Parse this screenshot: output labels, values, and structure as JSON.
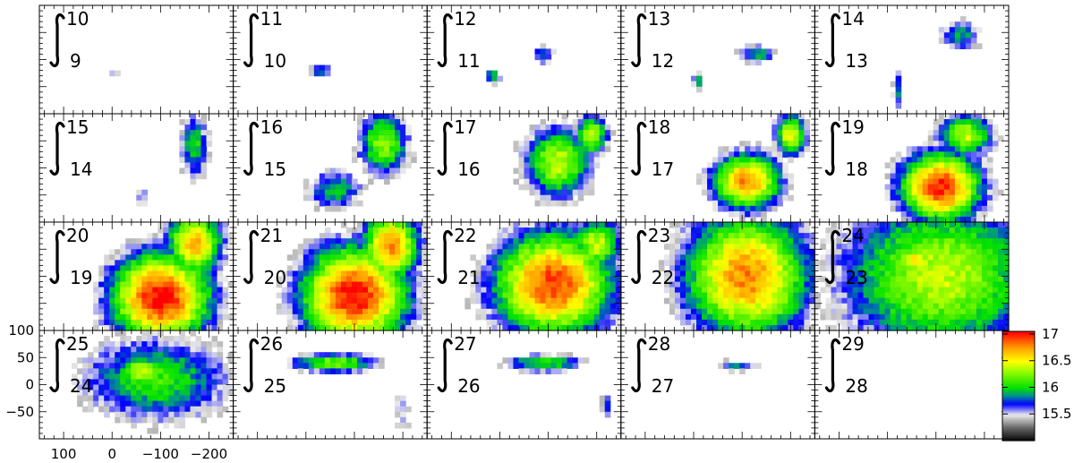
{
  "chart_data": {
    "type": "heatmap",
    "grid": {
      "rows": 4,
      "cols": 5
    },
    "panels": [
      {
        "upper": "10",
        "lower": "9",
        "blobs": [
          {
            "cx": -5,
            "cy": -25,
            "sx": 8,
            "sy": 8,
            "a": 15.7
          }
        ]
      },
      {
        "upper": "11",
        "lower": "10",
        "blobs": [
          {
            "cx": -30,
            "cy": -20,
            "sx": 20,
            "sy": 8,
            "a": 15.9
          },
          {
            "cx": -120,
            "cy": -20,
            "sx": 10,
            "sy": 5,
            "a": 15.45
          }
        ]
      },
      {
        "upper": "12",
        "lower": "11",
        "blobs": [
          {
            "cx": -90,
            "cy": 10,
            "sx": 18,
            "sy": 14,
            "a": 15.9
          },
          {
            "cx": 15,
            "cy": -30,
            "sx": 14,
            "sy": 12,
            "a": 15.95
          }
        ]
      },
      {
        "upper": "13",
        "lower": "12",
        "blobs": [
          {
            "cx": -130,
            "cy": 10,
            "sx": 30,
            "sy": 14,
            "a": 15.95
          },
          {
            "cx": -10,
            "cy": -40,
            "sx": 10,
            "sy": 14,
            "a": 15.9
          }
        ]
      },
      {
        "upper": "14",
        "lower": "13",
        "blobs": [
          {
            "cx": -150,
            "cy": 45,
            "sx": 35,
            "sy": 22,
            "a": 15.9
          },
          {
            "cx": -20,
            "cy": -55,
            "sx": 8,
            "sy": 30,
            "a": 15.85
          }
        ]
      },
      {
        "upper": "15",
        "lower": "14",
        "blobs": [
          {
            "cx": -170,
            "cy": 40,
            "sx": 22,
            "sy": 45,
            "a": 16.05
          },
          {
            "cx": -60,
            "cy": -50,
            "sx": 16,
            "sy": 18,
            "a": 15.6
          }
        ]
      },
      {
        "upper": "16",
        "lower": "15",
        "blobs": [
          {
            "cx": -160,
            "cy": 45,
            "sx": 40,
            "sy": 45,
            "a": 16.3
          },
          {
            "cx": -60,
            "cy": -40,
            "sx": 45,
            "sy": 28,
            "a": 16.0
          }
        ]
      },
      {
        "upper": "17",
        "lower": "16",
        "blobs": [
          {
            "cx": -120,
            "cy": 10,
            "sx": 55,
            "sy": 50,
            "a": 16.4
          },
          {
            "cx": -190,
            "cy": 60,
            "sx": 25,
            "sy": 30,
            "a": 16.4
          }
        ]
      },
      {
        "upper": "18",
        "lower": "17",
        "blobs": [
          {
            "cx": -110,
            "cy": -25,
            "sx": 55,
            "sy": 40,
            "a": 16.8
          },
          {
            "cx": -200,
            "cy": 60,
            "sx": 25,
            "sy": 30,
            "a": 16.5
          }
        ]
      },
      {
        "upper": "19",
        "lower": "18",
        "blobs": [
          {
            "cx": -110,
            "cy": -35,
            "sx": 65,
            "sy": 50,
            "a": 17.0
          },
          {
            "cx": -160,
            "cy": 60,
            "sx": 45,
            "sy": 30,
            "a": 16.4
          }
        ]
      },
      {
        "upper": "20",
        "lower": "19",
        "blobs": [
          {
            "cx": -100,
            "cy": -40,
            "sx": 80,
            "sy": 65,
            "a": 17.05
          },
          {
            "cx": -170,
            "cy": 60,
            "sx": 45,
            "sy": 45,
            "a": 16.7
          }
        ]
      },
      {
        "upper": "21",
        "lower": "20",
        "blobs": [
          {
            "cx": -100,
            "cy": -35,
            "sx": 85,
            "sy": 70,
            "a": 17.05
          },
          {
            "cx": -175,
            "cy": 55,
            "sx": 45,
            "sy": 50,
            "a": 16.8
          }
        ]
      },
      {
        "upper": "22",
        "lower": "21",
        "blobs": [
          {
            "cx": -110,
            "cy": -15,
            "sx": 95,
            "sy": 75,
            "a": 16.95
          },
          {
            "cx": -200,
            "cy": 60,
            "sx": 40,
            "sy": 40,
            "a": 16.4
          }
        ]
      },
      {
        "upper": "23",
        "lower": "22",
        "blobs": [
          {
            "cx": -110,
            "cy": 0,
            "sx": 100,
            "sy": 90,
            "a": 16.8
          },
          {
            "cx": -170,
            "cy": -50,
            "sx": 60,
            "sy": 30,
            "a": 16.3
          }
        ]
      },
      {
        "upper": "24",
        "lower": "23",
        "blobs": [
          {
            "cx": -110,
            "cy": 0,
            "sx": 160,
            "sy": 110,
            "a": 16.4
          },
          {
            "cx": -60,
            "cy": 30,
            "sx": 40,
            "sy": 22,
            "a": 16.55
          }
        ]
      },
      {
        "upper": "25",
        "lower": "24",
        "blobs": [
          {
            "cx": -90,
            "cy": 10,
            "sx": 120,
            "sy": 60,
            "a": 16.1
          },
          {
            "cx": -60,
            "cy": 25,
            "sx": 45,
            "sy": 20,
            "a": 16.45
          }
        ]
      },
      {
        "upper": "26",
        "lower": "25",
        "blobs": [
          {
            "cx": -60,
            "cy": 40,
            "sx": 70,
            "sy": 14,
            "a": 16.25
          },
          {
            "cx": -200,
            "cy": -50,
            "sx": 20,
            "sy": 40,
            "a": 15.5
          }
        ]
      },
      {
        "upper": "27",
        "lower": "26",
        "blobs": [
          {
            "cx": -90,
            "cy": 40,
            "sx": 60,
            "sy": 12,
            "a": 16.15
          },
          {
            "cx": -220,
            "cy": -40,
            "sx": 8,
            "sy": 20,
            "a": 15.85
          }
        ]
      },
      {
        "upper": "28",
        "lower": "27",
        "blobs": [
          {
            "cx": -90,
            "cy": 35,
            "sx": 40,
            "sy": 8,
            "a": 15.8
          }
        ]
      },
      {
        "upper": "29",
        "lower": "28",
        "blobs": [
          {
            "cx": -100,
            "cy": 40,
            "sx": 25,
            "sy": 6,
            "a": 15.4
          }
        ]
      }
    ],
    "x_ticks": [
      "100",
      "0",
      "−100",
      "−200"
    ],
    "y_ticks": [
      "100",
      "50",
      "0",
      "−50"
    ],
    "xlim": [
      150,
      -250
    ],
    "ylim": [
      -100,
      100
    ],
    "grid_lines": false,
    "colorbar": {
      "ticks": [
        "17",
        "16.5",
        "16",
        "15.5"
      ],
      "min": 15.0,
      "max": 17.05,
      "placement": "right"
    },
    "colors": {
      "red": "#ff0000",
      "orange": "#ff9900",
      "yellow": "#ffff00",
      "green": "#00e000",
      "teal": "#008888",
      "blue": "#0000ff",
      "grey": "#cccccc",
      "black": "#000000"
    }
  }
}
